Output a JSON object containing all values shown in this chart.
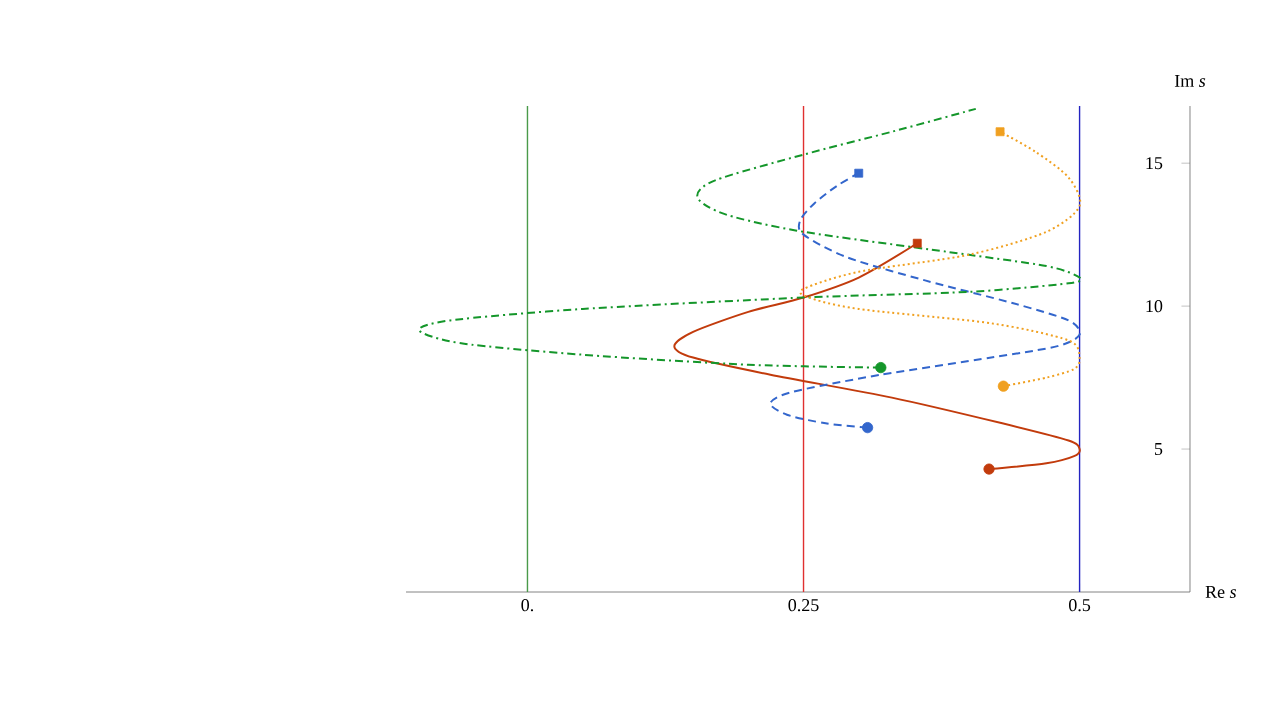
{
  "chart_data": {
    "type": "line",
    "xlabel": "Re *s*",
    "ylabel": "Im *s*",
    "xlim": [
      -0.11,
      0.6
    ],
    "ylim": [
      0,
      17
    ],
    "xticks": [
      {
        "value": 0,
        "label": "0."
      },
      0.25,
      0.5
    ],
    "yticks": [
      5,
      10,
      15
    ],
    "ref_lines": [
      {
        "axis": "x",
        "value": 0,
        "color": "#4a9a4a"
      },
      {
        "axis": "x",
        "value": 0.25,
        "color": "#e03030"
      },
      {
        "axis": "x",
        "value": 0.5,
        "color": "#2424c0"
      }
    ],
    "series": [
      {
        "color": "#c23b0c",
        "line_style": "solid",
        "marker": "none",
        "x": [
          0.418,
          0.47,
          0.495,
          0.5,
          0.49,
          0.43,
          0.33,
          0.22,
          0.15,
          0.133,
          0.15,
          0.2,
          0.25,
          0.3,
          0.353
        ],
        "values": [
          4.3,
          4.5,
          4.75,
          5.0,
          5.3,
          5.9,
          6.8,
          7.6,
          8.2,
          8.6,
          9.1,
          9.8,
          10.3,
          11.0,
          12.2
        ]
      },
      {
        "color": "#3366cc",
        "line_style": "dashed",
        "marker": "none",
        "x": [
          0.308,
          0.27,
          0.235,
          0.22,
          0.24,
          0.32,
          0.42,
          0.48,
          0.5,
          0.49,
          0.44,
          0.36,
          0.29,
          0.25,
          0.247,
          0.26,
          0.28,
          0.3
        ],
        "values": [
          5.75,
          5.9,
          6.2,
          6.6,
          7.0,
          7.6,
          8.2,
          8.6,
          9.0,
          9.5,
          10.1,
          10.9,
          11.7,
          12.5,
          13.0,
          13.6,
          14.2,
          14.65
        ]
      },
      {
        "color": "#14962a",
        "line_style": "dashdot",
        "marker": "none",
        "x": [
          0.32,
          0.2,
          0.05,
          -0.06,
          -0.098,
          -0.07,
          0.05,
          0.25,
          0.4,
          0.49,
          0.5,
          0.47,
          0.38,
          0.25,
          0.18,
          0.154,
          0.17,
          0.25,
          0.33,
          0.406
        ],
        "values": [
          7.85,
          7.95,
          8.3,
          8.7,
          9.15,
          9.5,
          9.9,
          10.3,
          10.5,
          10.8,
          11.0,
          11.4,
          11.9,
          12.6,
          13.2,
          13.8,
          14.4,
          15.3,
          16.1,
          16.9
        ]
      },
      {
        "color": "#f0a020",
        "line_style": "dotted",
        "marker": "none",
        "x": [
          0.431,
          0.47,
          0.495,
          0.5,
          0.49,
          0.42,
          0.3,
          0.255,
          0.25,
          0.3,
          0.4,
          0.47,
          0.5,
          0.49,
          0.46,
          0.428
        ],
        "values": [
          7.2,
          7.5,
          7.8,
          8.2,
          8.8,
          9.4,
          9.9,
          10.3,
          10.6,
          11.2,
          11.8,
          12.6,
          13.5,
          14.5,
          15.4,
          16.1
        ]
      },
      {
        "type": "scatter",
        "marker": "circle",
        "colors": [
          "#c23b0c",
          "#3366cc",
          "#14962a",
          "#f0a020"
        ],
        "x": [
          0.418,
          0.308,
          0.32,
          0.431
        ],
        "values": [
          4.3,
          5.75,
          7.85,
          7.2
        ]
      },
      {
        "type": "scatter",
        "marker": "square",
        "colors": [
          "#c23b0c",
          "#3366cc",
          "#f0a020"
        ],
        "x": [
          0.353,
          0.3,
          0.428
        ],
        "values": [
          12.2,
          14.65,
          16.1
        ]
      }
    ]
  }
}
